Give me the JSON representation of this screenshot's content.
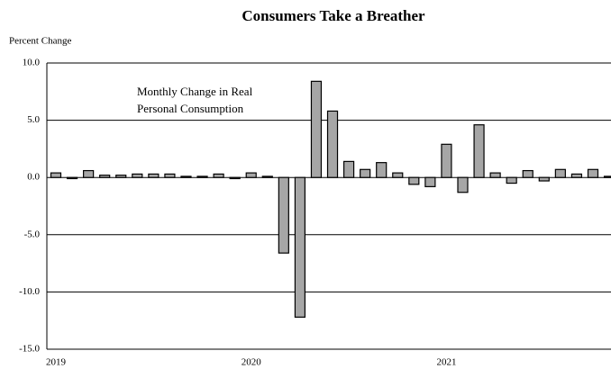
{
  "chart_data": {
    "type": "bar",
    "title": "Consumers  Take a Breather",
    "y_label": "Percent Change",
    "annotation": [
      "Monthly Change in Real",
      "Personal Consumption"
    ],
    "categories": [
      "2019",
      null,
      null,
      null,
      null,
      null,
      null,
      null,
      null,
      null,
      null,
      null,
      "2020",
      null,
      null,
      null,
      null,
      null,
      null,
      null,
      null,
      null,
      null,
      null,
      "2021",
      null,
      null,
      null,
      null,
      null,
      null,
      null,
      null,
      null,
      null
    ],
    "values": [
      0.4,
      -0.1,
      0.6,
      0.2,
      0.2,
      0.3,
      0.3,
      0.3,
      0.1,
      0.1,
      0.3,
      -0.1,
      0.4,
      0.1,
      -6.6,
      -12.2,
      8.4,
      5.8,
      1.4,
      0.7,
      1.3,
      0.4,
      -0.6,
      -0.8,
      2.9,
      -1.3,
      4.6,
      0.4,
      -0.5,
      0.6,
      -0.3,
      0.7,
      0.3,
      0.7,
      0.1
    ],
    "color": "#a6a6a6",
    "ylim": [
      -15,
      10
    ],
    "yticks": [
      {
        "value": -15,
        "label": "-15.0"
      },
      {
        "value": -10,
        "label": "-10.0"
      },
      {
        "value": -5,
        "label": "-5.0"
      },
      {
        "value": 0,
        "label": "0.0"
      },
      {
        "value": 5,
        "label": "5.0"
      },
      {
        "value": 10,
        "label": "10.0"
      }
    ],
    "grid": true
  }
}
